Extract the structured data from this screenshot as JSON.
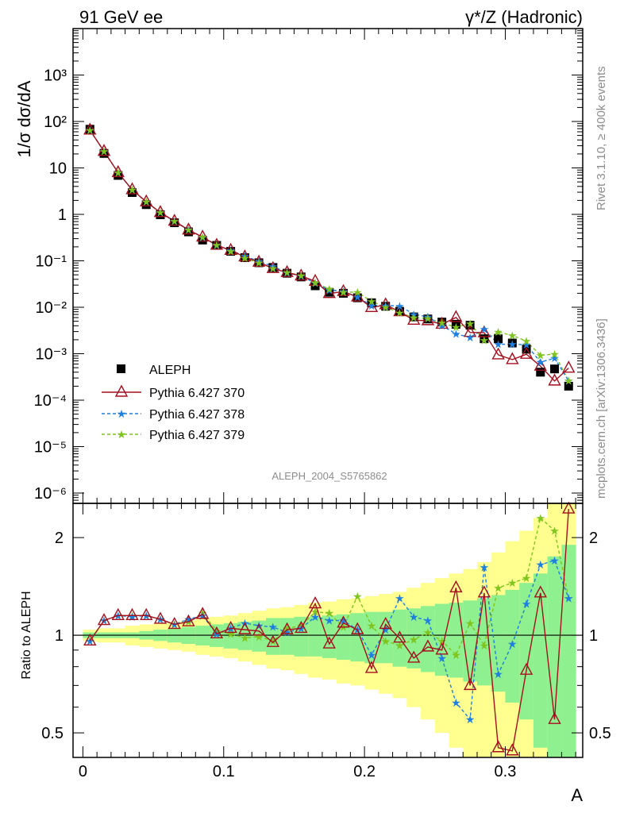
{
  "header": {
    "left_label": "91 GeV ee",
    "right_label": "γ*/Z (Hadronic)"
  },
  "side_text": {
    "rivet": "Rivet 3.1.10, ≥ 400k events",
    "mcplots": "mcplots.cern.ch [arXiv:1306.3436]"
  },
  "analysis_id": "ALEPH_2004_S5765862",
  "chart_data": {
    "type": "line",
    "xlabel": "A",
    "ylabel_main": "1/σ dσ/dA",
    "ylabel_ratio": "Ratio to ALEPH",
    "y_scale_main": "log",
    "y_scale_ratio": "log",
    "xlim": [
      -0.007,
      0.355
    ],
    "ylim_main": [
      6e-07,
      10000
    ],
    "ylim_ratio": [
      0.42,
      2.55
    ],
    "x_ticks": [
      "0",
      "0.1",
      "0.2",
      "0.3"
    ],
    "y_ticks_main": [
      "10⁻⁶",
      "10⁻⁵",
      "10⁻⁴",
      "10⁻³",
      "10⁻²",
      "10⁻¹",
      "1",
      "10",
      "10²",
      "10³"
    ],
    "y_ticks_ratio": [
      "0.5",
      "1",
      "2"
    ],
    "x": [
      0.005,
      0.015,
      0.025,
      0.035,
      0.045,
      0.055,
      0.065,
      0.075,
      0.085,
      0.095,
      0.105,
      0.115,
      0.125,
      0.135,
      0.145,
      0.155,
      0.165,
      0.175,
      0.185,
      0.195,
      0.205,
      0.215,
      0.225,
      0.235,
      0.245,
      0.255,
      0.265,
      0.275,
      0.285,
      0.295,
      0.305,
      0.315,
      0.325,
      0.335,
      0.345
    ],
    "series": [
      {
        "name": "ALEPH",
        "color": "#000000",
        "marker": "square",
        "values": [
          68,
          20.5,
          6.9,
          2.95,
          1.62,
          0.98,
          0.66,
          0.42,
          0.28,
          0.215,
          0.16,
          0.117,
          0.091,
          0.072,
          0.054,
          0.045,
          0.029,
          0.021,
          0.02,
          0.016,
          0.0125,
          0.0105,
          0.0082,
          0.0062,
          0.0056,
          0.0048,
          0.0043,
          0.0041,
          0.0021,
          0.0021,
          0.0017,
          0.00125,
          0.0004,
          0.00047,
          0.0002
        ]
      },
      {
        "name": "Pythia 6.427 370",
        "color": "#a50f1e",
        "marker": "open-triangle",
        "line": "solid",
        "ratio": [
          0.96,
          1.11,
          1.15,
          1.15,
          1.15,
          1.12,
          1.08,
          1.1,
          1.16,
          1.01,
          1.05,
          1.04,
          1.03,
          0.95,
          1.04,
          1.05,
          1.25,
          0.94,
          1.09,
          1.04,
          0.79,
          1.08,
          0.98,
          0.85,
          0.92,
          0.9,
          1.4,
          0.7,
          1.35,
          0.45,
          0.44,
          0.78,
          1.35,
          0.55,
          2.45
        ]
      },
      {
        "name": "Pythia 6.427 378",
        "color": "#1f7fe0",
        "marker": "star",
        "line": "dashed",
        "ratio": [
          0.96,
          1.11,
          1.15,
          1.14,
          1.15,
          1.12,
          1.08,
          1.12,
          1.15,
          1.01,
          1.05,
          1.09,
          1.07,
          1.06,
          1.02,
          1.05,
          1.14,
          1.11,
          1.11,
          1.04,
          0.87,
          1.04,
          1.3,
          1.14,
          1.11,
          0.85,
          0.62,
          0.55,
          1.62,
          0.76,
          0.94,
          1.25,
          1.65,
          1.7,
          1.3
        ]
      },
      {
        "name": "Pythia 6.427 379",
        "color": "#7fc41f",
        "marker": "star",
        "line": "dashed",
        "ratio": [
          0.96,
          1.11,
          1.15,
          1.15,
          1.15,
          1.12,
          1.08,
          1.1,
          1.17,
          1.03,
          1.01,
          0.98,
          0.99,
          0.96,
          1.05,
          1.07,
          1.18,
          1.17,
          1.06,
          1.32,
          1.07,
          0.96,
          0.93,
          0.97,
          1.02,
          0.96,
          0.87,
          1.09,
          0.93,
          1.4,
          1.45,
          1.5,
          2.3,
          2.1,
          1.3
        ]
      }
    ],
    "uncertainty_bands": {
      "inner_color": "#8ff08f",
      "outer_color": "#ffff8f",
      "inner_halfwidth": [
        0.02,
        0.02,
        0.02,
        0.02,
        0.03,
        0.04,
        0.05,
        0.06,
        0.07,
        0.08,
        0.09,
        0.1,
        0.11,
        0.13,
        0.13,
        0.14,
        0.14,
        0.15,
        0.16,
        0.17,
        0.18,
        0.18,
        0.2,
        0.21,
        0.23,
        0.25,
        0.26,
        0.28,
        0.3,
        0.33,
        0.38,
        0.45,
        0.55,
        0.75,
        0.9
      ],
      "outer_halfwidth": [
        0.04,
        0.05,
        0.05,
        0.07,
        0.08,
        0.09,
        0.1,
        0.11,
        0.13,
        0.14,
        0.15,
        0.17,
        0.19,
        0.21,
        0.22,
        0.24,
        0.26,
        0.27,
        0.29,
        0.3,
        0.32,
        0.34,
        0.36,
        0.4,
        0.45,
        0.5,
        0.55,
        0.6,
        0.68,
        0.8,
        0.95,
        1.1,
        1.3,
        1.6,
        2.0
      ]
    }
  }
}
